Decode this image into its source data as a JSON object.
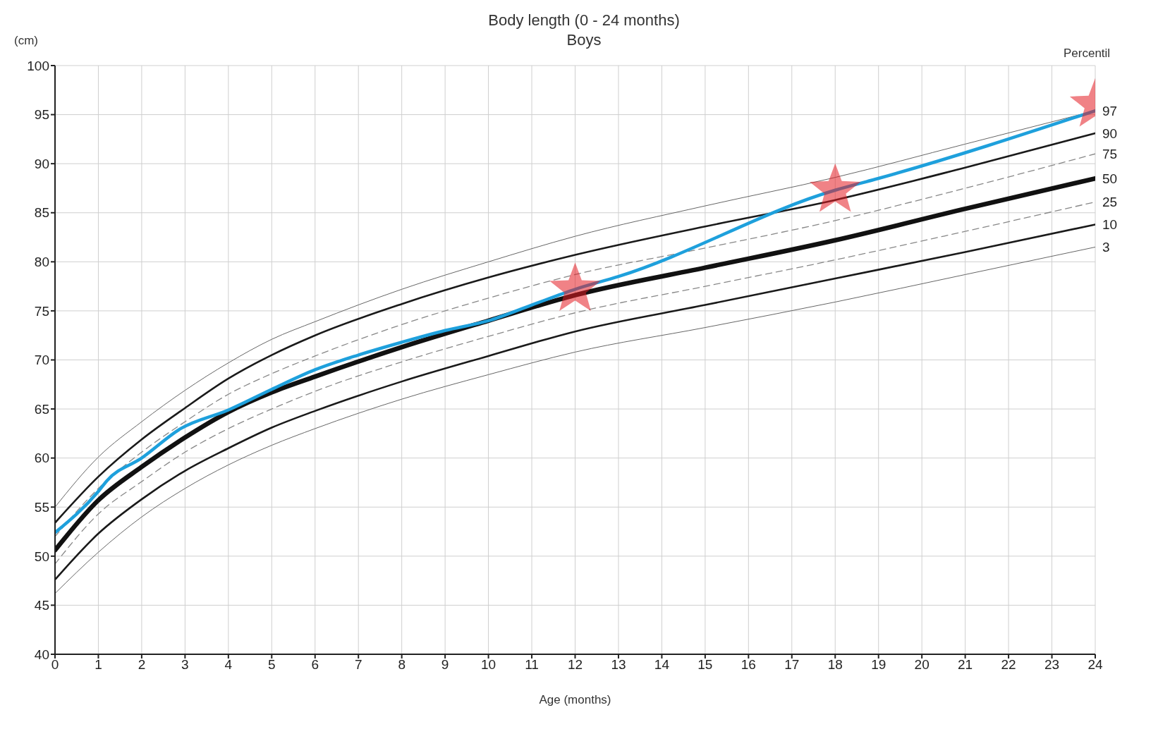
{
  "chart_data": {
    "type": "line",
    "title": "Body length (0 - 24 months)",
    "subtitle": "Boys",
    "xlabel": "Age (months)",
    "ylabel": "(cm)",
    "legend_title": "Percentil",
    "x": [
      0,
      1,
      2,
      3,
      4,
      5,
      6,
      8,
      10,
      12,
      15,
      18,
      21,
      24
    ],
    "xlim": [
      0,
      24
    ],
    "xticks": [
      0,
      1,
      2,
      3,
      4,
      5,
      6,
      7,
      8,
      9,
      10,
      11,
      12,
      13,
      14,
      15,
      16,
      17,
      18,
      19,
      20,
      21,
      22,
      23,
      24
    ],
    "ylim": [
      40,
      100
    ],
    "yticks": [
      40,
      45,
      50,
      55,
      60,
      65,
      70,
      75,
      80,
      85,
      90,
      95,
      100
    ],
    "grid": true,
    "legend": false,
    "marker": "none",
    "series": [
      {
        "name": "97",
        "color": "#666666",
        "line_style": "solid",
        "values": [
          55.0,
          60.1,
          63.7,
          66.9,
          69.7,
          72.1,
          73.9,
          77.2,
          80.0,
          82.6,
          85.7,
          88.6,
          92.0,
          95.4
        ]
      },
      {
        "name": "90",
        "color": "#1a1a1a",
        "line_style": "solid",
        "values": [
          53.4,
          58.1,
          61.9,
          65.1,
          68.1,
          70.5,
          72.5,
          75.7,
          78.4,
          80.7,
          83.6,
          86.3,
          89.6,
          93.1
        ]
      },
      {
        "name": "75",
        "color": "#888888",
        "line_style": "dashed",
        "values": [
          52.0,
          56.9,
          60.6,
          63.7,
          66.5,
          68.6,
          70.4,
          73.6,
          76.3,
          78.7,
          81.4,
          84.2,
          87.5,
          91.0
        ]
      },
      {
        "name": "50",
        "color": "#111111",
        "line_style": "solid",
        "values": [
          50.6,
          55.7,
          59.1,
          62.1,
          64.7,
          66.7,
          68.3,
          71.3,
          74.0,
          76.6,
          79.4,
          82.2,
          85.4,
          88.5
        ]
      },
      {
        "name": "25",
        "color": "#888888",
        "line_style": "dashed",
        "values": [
          49.2,
          54.3,
          57.6,
          60.6,
          63.0,
          65.0,
          66.8,
          69.8,
          72.4,
          74.8,
          77.5,
          80.2,
          83.1,
          86.1
        ]
      },
      {
        "name": "10",
        "color": "#1a1a1a",
        "line_style": "solid",
        "values": [
          47.6,
          52.3,
          55.8,
          58.7,
          61.0,
          63.1,
          64.8,
          67.8,
          70.4,
          72.9,
          75.6,
          78.3,
          81.0,
          83.8
        ]
      },
      {
        "name": "3",
        "color": "#666666",
        "line_style": "solid",
        "values": [
          46.2,
          50.4,
          54.0,
          56.9,
          59.3,
          61.3,
          63.0,
          66.0,
          68.5,
          70.8,
          73.3,
          75.9,
          78.7,
          81.5
        ]
      },
      {
        "color": "#1ea0dc",
        "line_style": "solid",
        "x": [
          0,
          1,
          1.2,
          2,
          2.9,
          4,
          5,
          6,
          7,
          8,
          9,
          10,
          11,
          12,
          13,
          18,
          19,
          24
        ],
        "values": [
          52.4,
          56.6,
          57.7,
          60.0,
          63.0,
          64.9,
          67.0,
          69.0,
          70.5,
          71.8,
          73.0,
          74.0,
          75.6,
          77.2,
          78.5,
          87.3,
          88.5,
          95.4
        ]
      },
      {
        "type": "scatter",
        "marker": "star",
        "color": "#e31b23",
        "x": [
          12,
          18,
          24
        ],
        "values": [
          77.2,
          87.3,
          96.0
        ]
      }
    ]
  }
}
